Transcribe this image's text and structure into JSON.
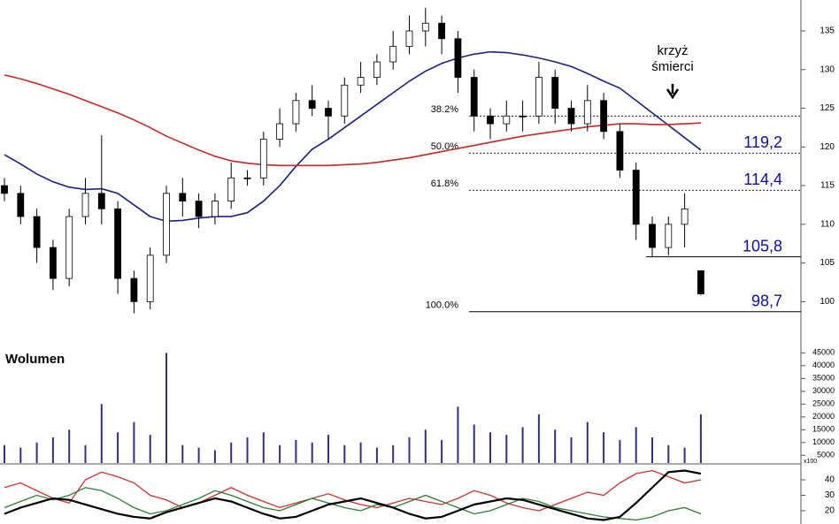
{
  "chart_data": [
    {
      "type": "candlestick",
      "open": [
        115,
        114,
        111,
        107,
        103,
        111,
        114,
        112,
        103,
        100,
        106,
        114,
        113,
        111,
        113,
        116,
        116,
        121,
        123,
        126,
        125,
        124,
        128,
        129,
        131,
        133,
        135,
        136,
        134,
        129,
        124,
        123,
        124,
        124,
        129,
        125,
        123,
        126,
        122,
        117,
        110,
        107,
        110,
        104
      ],
      "high": [
        116,
        115,
        112,
        108,
        112,
        116,
        121.5,
        113,
        104,
        107,
        115,
        116,
        114,
        114,
        118,
        117,
        122,
        125,
        127,
        128,
        126,
        129,
        131,
        132,
        135,
        137,
        138,
        137,
        135,
        130,
        125,
        126,
        126,
        131,
        130,
        126,
        128,
        127,
        123,
        118,
        111,
        111,
        114,
        104
      ],
      "low": [
        113,
        110,
        105,
        101.5,
        102,
        110,
        110,
        101,
        98.5,
        99,
        105,
        111,
        109.5,
        110,
        112,
        115,
        115,
        120,
        122,
        124,
        121,
        123,
        127,
        128,
        130,
        132,
        133,
        132,
        127,
        122,
        121,
        122,
        122,
        123,
        123,
        122,
        122,
        121,
        116,
        108,
        105.8,
        106,
        107,
        100.8
      ],
      "close": [
        114,
        111,
        107,
        103,
        111,
        114,
        112,
        103,
        100,
        106,
        114,
        113,
        111,
        113,
        116,
        116,
        121,
        123,
        126,
        125,
        124,
        128,
        129,
        131,
        133,
        135,
        136,
        134,
        129,
        124,
        123,
        124,
        124,
        129,
        125,
        123,
        126,
        122,
        117,
        110,
        107,
        110,
        112,
        101
      ],
      "overlays": [
        {
          "color": "#1a237e",
          "values": [
            119,
            117.8,
            116.5,
            115.5,
            114.8,
            114.5,
            114.6,
            114,
            112.5,
            111,
            110.4,
            110.5,
            110.8,
            111,
            111,
            111.5,
            113,
            115,
            117.5,
            119.7,
            121,
            122.5,
            124,
            125.5,
            127,
            128.5,
            129.8,
            130.8,
            131.5,
            132,
            132.3,
            132.2,
            131.9,
            131.5,
            131,
            130.4,
            129.5,
            128.5,
            127.6,
            126,
            124.4,
            122.8,
            121.2,
            119.6
          ]
        },
        {
          "color": "#c62828",
          "values": [
            129.3,
            128.8,
            128.2,
            127.5,
            126.8,
            126,
            125.2,
            124.4,
            123.5,
            122.5,
            121.4,
            120.5,
            119.6,
            118.8,
            118.2,
            117.9,
            117.7,
            117.6,
            117.6,
            117.6,
            117.6,
            117.7,
            117.8,
            118,
            118.3,
            118.6,
            119,
            119.4,
            119.8,
            120.2,
            120.6,
            121,
            121.4,
            121.7,
            122,
            122.3,
            122.6,
            122.8,
            123,
            123,
            122.9,
            122.9,
            123,
            123.1
          ]
        }
      ],
      "levels": [
        {
          "value": 124,
          "label": "38.2%",
          "style": "dashed"
        },
        {
          "value": 119.2,
          "label": "50.0%",
          "price_label": "119,2",
          "style": "dashed"
        },
        {
          "value": 114.4,
          "label": "61.8%",
          "price_label": "114,4",
          "style": "dashed"
        },
        {
          "value": 105.8,
          "price_label": "105,8",
          "style": "solid"
        },
        {
          "value": 98.7,
          "label": "100.0%",
          "price_label": "98,7",
          "style": "solid"
        }
      ],
      "annotation": [
        "krzyż",
        "śmierci"
      ],
      "ylim": [
        97.3,
        139
      ],
      "yticks": [
        100,
        105,
        110,
        115,
        120,
        125,
        130,
        135
      ]
    },
    {
      "type": "bar",
      "title": "Wolumen",
      "color": "#303080",
      "axis_note": "x100",
      "values": [
        9000,
        8000,
        10000,
        12000,
        15000,
        9000,
        25000,
        14000,
        18000,
        13000,
        45000,
        9000,
        8000,
        7000,
        10000,
        12000,
        14000,
        9000,
        11000,
        10000,
        13000,
        9000,
        10000,
        8000,
        9000,
        12000,
        15000,
        11000,
        24000,
        17000,
        14000,
        13000,
        16000,
        21000,
        15000,
        12000,
        18000,
        14000,
        11000,
        16000,
        12000,
        9000,
        8000,
        21000
      ],
      "ylim": [
        2000,
        46500
      ],
      "yticks": [
        5000,
        10000,
        15000,
        20000,
        25000,
        30000,
        35000,
        40000,
        45000
      ]
    },
    {
      "type": "line",
      "series": [
        {
          "color": "#d32f2f",
          "values": [
            35,
            38,
            33,
            28,
            25,
            40,
            45,
            42,
            38,
            30,
            27,
            22,
            25,
            30,
            35,
            30,
            26,
            22,
            25,
            28,
            31,
            27,
            24,
            22,
            25,
            28,
            26,
            24,
            28,
            33,
            30,
            25,
            22,
            20,
            24,
            28,
            32,
            30,
            38,
            44,
            46,
            42,
            38,
            40
          ]
        },
        {
          "color": "#2e7d32",
          "values": [
            22,
            26,
            30,
            27,
            30,
            35,
            33,
            28,
            22,
            18,
            20,
            24,
            28,
            33,
            30,
            26,
            22,
            20,
            24,
            28,
            25,
            22,
            20,
            24,
            22,
            26,
            30,
            26,
            22,
            18,
            20,
            24,
            28,
            26,
            22,
            20,
            18,
            16,
            15,
            14,
            16,
            20,
            22,
            18
          ]
        },
        {
          "color": "#000000",
          "values": [
            18,
            22,
            25,
            28,
            27,
            24,
            21,
            18,
            16,
            15,
            19,
            22,
            25,
            28,
            26,
            22,
            18,
            15,
            16,
            20,
            24,
            26,
            28,
            25,
            22,
            18,
            15,
            16,
            20,
            24,
            26,
            28,
            27,
            24,
            21,
            18,
            15,
            14,
            16,
            25,
            35,
            45,
            46,
            44
          ]
        }
      ],
      "ylim": [
        11.4,
        48.6
      ],
      "yticks": [
        20,
        30,
        40
      ]
    }
  ]
}
